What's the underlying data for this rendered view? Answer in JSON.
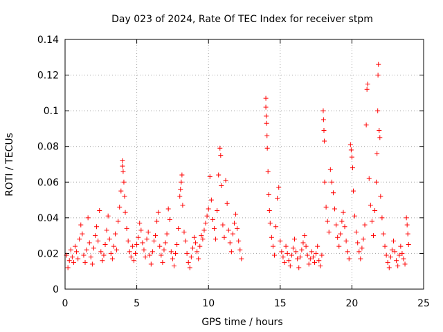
{
  "chart_data": {
    "type": "scatter",
    "title": "Day 023 of 2024, Rate Of TEC Index for receiver stpm",
    "xlabel": "GPS time / hours",
    "ylabel": "ROTI / TECUs",
    "xlim": [
      0,
      25
    ],
    "ylim": [
      0,
      0.14
    ],
    "x_ticks": [
      0,
      5,
      10,
      15,
      20,
      25
    ],
    "x_tick_labels": [
      "0",
      "5",
      "10",
      "15",
      "20",
      "25"
    ],
    "y_ticks": [
      0,
      0.02,
      0.04,
      0.06,
      0.08,
      0.1,
      0.12,
      0.14
    ],
    "y_tick_labels": [
      "0",
      "0.02",
      "0.04",
      "0.06",
      "0.08",
      "0.1",
      "0.12",
      "0.14"
    ],
    "grid": true,
    "marker": "+",
    "marker_color": "#ff0000",
    "series": [
      {
        "name": "ROTI",
        "points": [
          [
            0.1,
            0.019
          ],
          [
            0.2,
            0.012
          ],
          [
            0.3,
            0.016
          ],
          [
            0.4,
            0.022
          ],
          [
            0.5,
            0.018
          ],
          [
            0.6,
            0.015
          ],
          [
            0.7,
            0.024
          ],
          [
            0.8,
            0.021
          ],
          [
            0.9,
            0.017
          ],
          [
            1.0,
            0.028
          ],
          [
            1.1,
            0.036
          ],
          [
            1.2,
            0.031
          ],
          [
            1.3,
            0.019
          ],
          [
            1.4,
            0.015
          ],
          [
            1.5,
            0.022
          ],
          [
            1.6,
            0.04
          ],
          [
            1.7,
            0.026
          ],
          [
            1.8,
            0.018
          ],
          [
            1.9,
            0.014
          ],
          [
            2.0,
            0.023
          ],
          [
            2.1,
            0.03
          ],
          [
            2.2,
            0.035
          ],
          [
            2.3,
            0.027
          ],
          [
            2.4,
            0.044
          ],
          [
            2.5,
            0.021
          ],
          [
            2.6,
            0.016
          ],
          [
            2.7,
            0.019
          ],
          [
            2.8,
            0.025
          ],
          [
            2.9,
            0.033
          ],
          [
            3.0,
            0.041
          ],
          [
            3.1,
            0.028
          ],
          [
            3.2,
            0.02
          ],
          [
            3.3,
            0.017
          ],
          [
            3.4,
            0.024
          ],
          [
            3.5,
            0.031
          ],
          [
            3.6,
            0.022
          ],
          [
            3.7,
            0.038
          ],
          [
            3.8,
            0.046
          ],
          [
            3.9,
            0.055
          ],
          [
            4.0,
            0.072
          ],
          [
            4.0,
            0.069
          ],
          [
            4.05,
            0.066
          ],
          [
            4.1,
            0.06
          ],
          [
            4.15,
            0.052
          ],
          [
            4.2,
            0.043
          ],
          [
            4.3,
            0.034
          ],
          [
            4.4,
            0.027
          ],
          [
            4.5,
            0.021
          ],
          [
            4.6,
            0.018
          ],
          [
            4.7,
            0.024
          ],
          [
            4.8,
            0.016
          ],
          [
            4.9,
            0.02
          ],
          [
            5.0,
            0.025
          ],
          [
            5.1,
            0.029
          ],
          [
            5.2,
            0.037
          ],
          [
            5.3,
            0.033
          ],
          [
            5.4,
            0.026
          ],
          [
            5.5,
            0.022
          ],
          [
            5.6,
            0.018
          ],
          [
            5.7,
            0.028
          ],
          [
            5.8,
            0.032
          ],
          [
            5.9,
            0.019
          ],
          [
            6.0,
            0.014
          ],
          [
            6.1,
            0.021
          ],
          [
            6.2,
            0.027
          ],
          [
            6.3,
            0.03
          ],
          [
            6.4,
            0.038
          ],
          [
            6.5,
            0.043
          ],
          [
            6.6,
            0.024
          ],
          [
            6.7,
            0.019
          ],
          [
            6.8,
            0.015
          ],
          [
            6.9,
            0.022
          ],
          [
            7.0,
            0.026
          ],
          [
            7.1,
            0.031
          ],
          [
            7.2,
            0.045
          ],
          [
            7.3,
            0.039
          ],
          [
            7.4,
            0.021
          ],
          [
            7.5,
            0.017
          ],
          [
            7.6,
            0.013
          ],
          [
            7.7,
            0.02
          ],
          [
            7.8,
            0.025
          ],
          [
            7.9,
            0.034
          ],
          [
            8.0,
            0.052
          ],
          [
            8.05,
            0.056
          ],
          [
            8.1,
            0.06
          ],
          [
            8.15,
            0.064
          ],
          [
            8.2,
            0.047
          ],
          [
            8.3,
            0.032
          ],
          [
            8.4,
            0.027
          ],
          [
            8.5,
            0.02
          ],
          [
            8.6,
            0.015
          ],
          [
            8.7,
            0.012
          ],
          [
            8.8,
            0.018
          ],
          [
            8.9,
            0.023
          ],
          [
            9.0,
            0.029
          ],
          [
            9.1,
            0.026
          ],
          [
            9.2,
            0.021
          ],
          [
            9.3,
            0.017
          ],
          [
            9.4,
            0.024
          ],
          [
            9.5,
            0.03
          ],
          [
            9.6,
            0.028
          ],
          [
            9.7,
            0.033
          ],
          [
            9.8,
            0.037
          ],
          [
            9.9,
            0.041
          ],
          [
            10.0,
            0.045
          ],
          [
            10.1,
            0.063
          ],
          [
            10.2,
            0.05
          ],
          [
            10.3,
            0.039
          ],
          [
            10.4,
            0.034
          ],
          [
            10.5,
            0.028
          ],
          [
            10.6,
            0.044
          ],
          [
            10.7,
            0.064
          ],
          [
            10.8,
            0.079
          ],
          [
            10.85,
            0.075
          ],
          [
            10.9,
            0.058
          ],
          [
            11.0,
            0.036
          ],
          [
            11.1,
            0.029
          ],
          [
            11.2,
            0.061
          ],
          [
            11.3,
            0.048
          ],
          [
            11.4,
            0.033
          ],
          [
            11.5,
            0.026
          ],
          [
            11.6,
            0.021
          ],
          [
            11.7,
            0.031
          ],
          [
            11.8,
            0.037
          ],
          [
            11.9,
            0.042
          ],
          [
            12.0,
            0.034
          ],
          [
            12.1,
            0.027
          ],
          [
            12.2,
            0.022
          ],
          [
            12.3,
            0.017
          ],
          [
            14.0,
            0.107
          ],
          [
            14.0,
            0.102
          ],
          [
            14.02,
            0.097
          ],
          [
            14.05,
            0.093
          ],
          [
            14.08,
            0.086
          ],
          [
            14.1,
            0.079
          ],
          [
            14.15,
            0.066
          ],
          [
            14.2,
            0.053
          ],
          [
            14.25,
            0.044
          ],
          [
            14.3,
            0.037
          ],
          [
            14.4,
            0.029
          ],
          [
            14.5,
            0.024
          ],
          [
            14.6,
            0.019
          ],
          [
            14.7,
            0.035
          ],
          [
            14.8,
            0.051
          ],
          [
            14.9,
            0.057
          ],
          [
            15.0,
            0.027
          ],
          [
            15.1,
            0.021
          ],
          [
            15.2,
            0.018
          ],
          [
            15.3,
            0.015
          ],
          [
            15.4,
            0.024
          ],
          [
            15.5,
            0.02
          ],
          [
            15.6,
            0.016
          ],
          [
            15.7,
            0.013
          ],
          [
            15.8,
            0.019
          ],
          [
            15.9,
            0.023
          ],
          [
            16.0,
            0.028
          ],
          [
            16.1,
            0.021
          ],
          [
            16.2,
            0.017
          ],
          [
            16.3,
            0.012
          ],
          [
            16.4,
            0.018
          ],
          [
            16.5,
            0.022
          ],
          [
            16.6,
            0.026
          ],
          [
            16.7,
            0.03
          ],
          [
            16.8,
            0.024
          ],
          [
            16.9,
            0.019
          ],
          [
            17.0,
            0.014
          ],
          [
            17.1,
            0.017
          ],
          [
            17.2,
            0.021
          ],
          [
            17.3,
            0.018
          ],
          [
            17.4,
            0.015
          ],
          [
            17.5,
            0.02
          ],
          [
            17.6,
            0.024
          ],
          [
            17.7,
            0.016
          ],
          [
            17.8,
            0.013
          ],
          [
            17.9,
            0.019
          ],
          [
            18.0,
            0.1
          ],
          [
            18.02,
            0.095
          ],
          [
            18.05,
            0.089
          ],
          [
            18.08,
            0.083
          ],
          [
            18.1,
            0.06
          ],
          [
            18.2,
            0.046
          ],
          [
            18.3,
            0.038
          ],
          [
            18.4,
            0.032
          ],
          [
            18.5,
            0.067
          ],
          [
            18.6,
            0.06
          ],
          [
            18.7,
            0.054
          ],
          [
            18.8,
            0.045
          ],
          [
            18.9,
            0.036
          ],
          [
            19.0,
            0.029
          ],
          [
            19.1,
            0.024
          ],
          [
            19.2,
            0.031
          ],
          [
            19.3,
            0.038
          ],
          [
            19.4,
            0.043
          ],
          [
            19.5,
            0.035
          ],
          [
            19.6,
            0.027
          ],
          [
            19.7,
            0.021
          ],
          [
            19.8,
            0.017
          ],
          [
            19.9,
            0.081
          ],
          [
            19.95,
            0.078
          ],
          [
            20.0,
            0.074
          ],
          [
            20.05,
            0.068
          ],
          [
            20.1,
            0.055
          ],
          [
            20.2,
            0.041
          ],
          [
            20.3,
            0.032
          ],
          [
            20.4,
            0.026
          ],
          [
            20.5,
            0.021
          ],
          [
            20.6,
            0.017
          ],
          [
            20.7,
            0.023
          ],
          [
            20.8,
            0.028
          ],
          [
            20.9,
            0.036
          ],
          [
            21.0,
            0.092
          ],
          [
            21.05,
            0.112
          ],
          [
            21.1,
            0.115
          ],
          [
            21.2,
            0.062
          ],
          [
            21.3,
            0.047
          ],
          [
            21.4,
            0.038
          ],
          [
            21.5,
            0.03
          ],
          [
            21.6,
            0.044
          ],
          [
            21.7,
            0.06
          ],
          [
            21.75,
            0.076
          ],
          [
            21.8,
            0.1
          ],
          [
            21.82,
            0.12
          ],
          [
            21.85,
            0.126
          ],
          [
            21.9,
            0.089
          ],
          [
            21.95,
            0.085
          ],
          [
            22.0,
            0.052
          ],
          [
            22.1,
            0.04
          ],
          [
            22.2,
            0.031
          ],
          [
            22.3,
            0.024
          ],
          [
            22.4,
            0.019
          ],
          [
            22.5,
            0.015
          ],
          [
            22.6,
            0.012
          ],
          [
            22.7,
            0.018
          ],
          [
            22.8,
            0.022
          ],
          [
            22.9,
            0.027
          ],
          [
            23.0,
            0.021
          ],
          [
            23.1,
            0.016
          ],
          [
            23.2,
            0.013
          ],
          [
            23.3,
            0.019
          ],
          [
            23.4,
            0.024
          ],
          [
            23.5,
            0.02
          ],
          [
            23.6,
            0.017
          ],
          [
            23.7,
            0.014
          ],
          [
            23.8,
            0.04
          ],
          [
            23.85,
            0.036
          ],
          [
            23.9,
            0.031
          ],
          [
            23.95,
            0.025
          ]
        ]
      }
    ]
  }
}
